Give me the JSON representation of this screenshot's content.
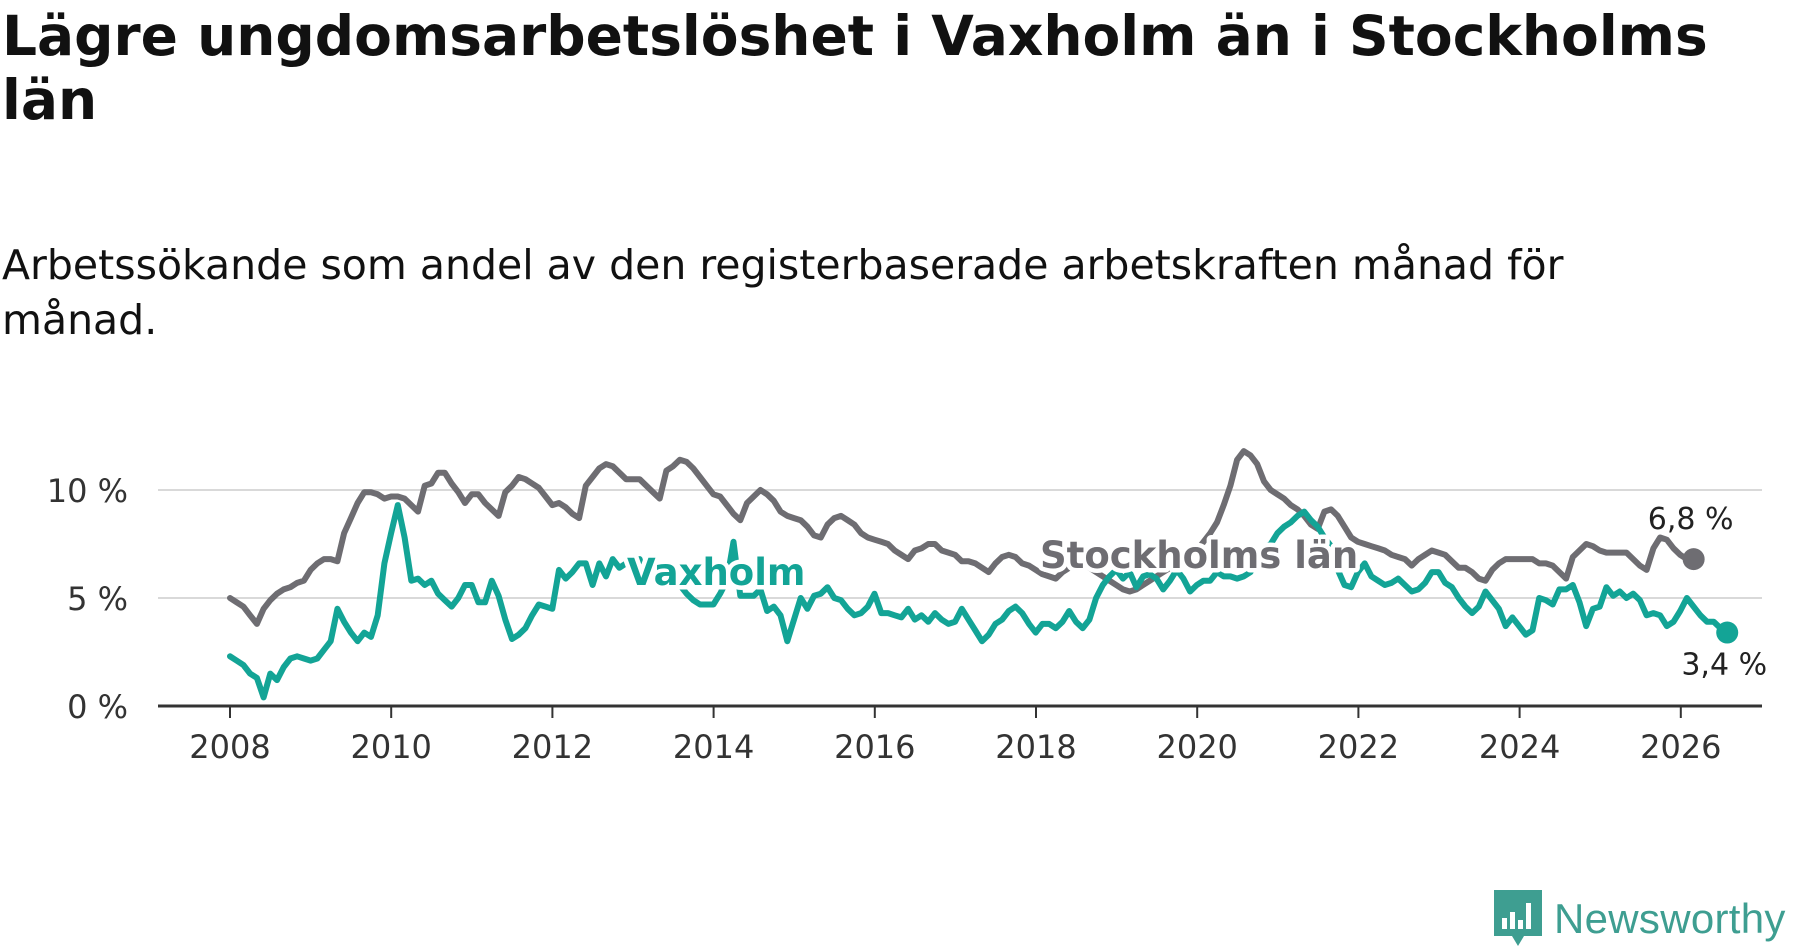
{
  "title": "Lägre ungdomsarbetslöshet i Vaxholm än i Stockholms län",
  "subtitle": "Arbetssökande som andel av den registerbaserade arbetskraften månad för månad.",
  "brand": {
    "name": "Newsworthy",
    "color": "#3e9e91"
  },
  "chart_data": {
    "type": "line",
    "title": "Lägre ungdomsarbetslöshet i Vaxholm än i Stockholms län",
    "subtitle": "Arbetssökande som andel av den registerbaserade arbetskraften månad för månad.",
    "xlabel": "",
    "ylabel": "",
    "x_start": 2008.0,
    "x_step": 0.0833,
    "xlim": [
      2008,
      2026.1
    ],
    "xticks": [
      2008,
      2010,
      2012,
      2014,
      2016,
      2018,
      2020,
      2022,
      2024,
      2026
    ],
    "xtick_labels": [
      "2008",
      "2010",
      "2012",
      "2014",
      "2016",
      "2018",
      "2020",
      "2022",
      "2024",
      "2026"
    ],
    "ylim": [
      0,
      12
    ],
    "yticks": [
      0,
      5,
      10
    ],
    "ytick_labels": [
      "0 %",
      "5 %",
      "10 %"
    ],
    "grid": true,
    "series": [
      {
        "name": "Stockholms län",
        "color": "#6e6d72",
        "label": "Stockholms län",
        "end_label": "6,8 %",
        "values": [
          5.0,
          4.8,
          4.6,
          4.2,
          3.8,
          4.5,
          4.9,
          5.2,
          5.4,
          5.5,
          5.7,
          5.8,
          6.3,
          6.6,
          6.8,
          6.8,
          6.7,
          8.0,
          8.7,
          9.4,
          9.9,
          9.9,
          9.8,
          9.6,
          9.7,
          9.7,
          9.6,
          9.3,
          9.0,
          10.2,
          10.3,
          10.8,
          10.8,
          10.3,
          9.9,
          9.4,
          9.8,
          9.8,
          9.4,
          9.1,
          8.8,
          9.9,
          10.2,
          10.6,
          10.5,
          10.3,
          10.1,
          9.7,
          9.3,
          9.4,
          9.2,
          8.9,
          8.7,
          10.2,
          10.6,
          11.0,
          11.2,
          11.1,
          10.8,
          10.5,
          10.5,
          10.5,
          10.2,
          9.9,
          9.6,
          10.9,
          11.1,
          11.4,
          11.3,
          11.0,
          10.6,
          10.2,
          9.8,
          9.7,
          9.3,
          8.9,
          8.6,
          9.4,
          9.7,
          10.0,
          9.8,
          9.5,
          9.0,
          8.8,
          8.7,
          8.6,
          8.3,
          7.9,
          7.8,
          8.4,
          8.7,
          8.8,
          8.6,
          8.4,
          8.0,
          7.8,
          7.7,
          7.6,
          7.5,
          7.2,
          7.0,
          6.8,
          7.2,
          7.3,
          7.5,
          7.5,
          7.2,
          7.1,
          7.0,
          6.7,
          6.7,
          6.6,
          6.4,
          6.2,
          6.6,
          6.9,
          7.0,
          6.9,
          6.6,
          6.5,
          6.3,
          6.1,
          6.0,
          5.9,
          6.2,
          6.4,
          6.6,
          6.6,
          6.4,
          6.2,
          6.0,
          5.8,
          5.6,
          5.4,
          5.3,
          5.4,
          5.6,
          5.8,
          6.0,
          6.2,
          6.4,
          6.6,
          6.8,
          7.0,
          7.2,
          7.6,
          8.0,
          8.5,
          9.3,
          10.2,
          11.4,
          11.8,
          11.6,
          11.2,
          10.4,
          10.0,
          9.8,
          9.6,
          9.3,
          9.1,
          8.8,
          8.4,
          8.2,
          9.0,
          9.1,
          8.8,
          8.3,
          7.8,
          7.6,
          7.5,
          7.4,
          7.3,
          7.2,
          7.0,
          6.9,
          6.8,
          6.5,
          6.8,
          7.0,
          7.2,
          7.1,
          7.0,
          6.7,
          6.4,
          6.4,
          6.2,
          5.9,
          5.8,
          6.3,
          6.6,
          6.8,
          6.8,
          6.8,
          6.8,
          6.8,
          6.6,
          6.6,
          6.5,
          6.2,
          5.9,
          6.9,
          7.2,
          7.5,
          7.4,
          7.2,
          7.1,
          7.1,
          7.1,
          7.1,
          6.8,
          6.5,
          6.3,
          7.3,
          7.8,
          7.7,
          7.3,
          7.0,
          6.8,
          6.8
        ]
      },
      {
        "name": "Vaxholm",
        "color": "#13a496",
        "label": "Vaxholm",
        "end_label": "3,4 %",
        "values": [
          2.3,
          2.1,
          1.9,
          1.5,
          1.3,
          0.4,
          1.5,
          1.2,
          1.8,
          2.2,
          2.3,
          2.2,
          2.1,
          2.2,
          2.6,
          3.0,
          4.5,
          3.9,
          3.4,
          3.0,
          3.4,
          3.2,
          4.2,
          6.6,
          8.0,
          9.3,
          7.8,
          5.8,
          5.9,
          5.6,
          5.8,
          5.2,
          4.9,
          4.6,
          5.0,
          5.6,
          5.6,
          4.8,
          4.8,
          5.8,
          5.1,
          4.0,
          3.1,
          3.3,
          3.6,
          4.2,
          4.7,
          4.6,
          4.5,
          6.3,
          5.9,
          6.2,
          6.6,
          6.6,
          5.6,
          6.6,
          6.0,
          6.8,
          6.4,
          6.6,
          6.6,
          6.8,
          5.7,
          6.1,
          6.5,
          6.3,
          6.0,
          5.6,
          5.2,
          4.9,
          4.7,
          4.7,
          4.7,
          5.2,
          5.8,
          7.6,
          5.1,
          5.1,
          5.1,
          5.4,
          4.4,
          4.6,
          4.2,
          3.0,
          4.0,
          5.0,
          4.5,
          5.1,
          5.2,
          5.5,
          5.0,
          4.9,
          4.5,
          4.2,
          4.3,
          4.6,
          5.2,
          4.3,
          4.3,
          4.2,
          4.1,
          4.5,
          4.0,
          4.2,
          3.9,
          4.3,
          4.0,
          3.8,
          3.9,
          4.5,
          4.0,
          3.5,
          3.0,
          3.3,
          3.8,
          4.0,
          4.4,
          4.6,
          4.3,
          3.8,
          3.4,
          3.8,
          3.8,
          3.6,
          3.9,
          4.4,
          3.9,
          3.6,
          4.0,
          5.0,
          5.6,
          6.0,
          6.3,
          5.9,
          6.2,
          5.5,
          6.0,
          6.1,
          5.9,
          5.4,
          5.8,
          6.3,
          5.9,
          5.3,
          5.6,
          5.8,
          5.8,
          6.2,
          6.0,
          6.0,
          5.9,
          6.0,
          6.2,
          6.8,
          7.3,
          7.5,
          8.0,
          8.3,
          8.5,
          8.8,
          9.0,
          8.6,
          8.3,
          7.8,
          7.4,
          6.3,
          5.6,
          5.5,
          6.2,
          6.6,
          6.0,
          5.8,
          5.6,
          5.7,
          5.9,
          5.6,
          5.3,
          5.4,
          5.7,
          6.2,
          6.2,
          5.7,
          5.5,
          5.0,
          4.6,
          4.3,
          4.6,
          5.3,
          4.9,
          4.5,
          3.7,
          4.1,
          3.7,
          3.3,
          3.5,
          5.0,
          4.9,
          4.7,
          5.4,
          5.4,
          5.6,
          4.8,
          3.7,
          4.5,
          4.6,
          5.5,
          5.1,
          5.3,
          5.0,
          5.2,
          4.9,
          4.2,
          4.3,
          4.2,
          3.7,
          3.9,
          4.4,
          5.0,
          4.6,
          4.2,
          3.9,
          3.9,
          3.6,
          3.4
        ]
      }
    ]
  }
}
